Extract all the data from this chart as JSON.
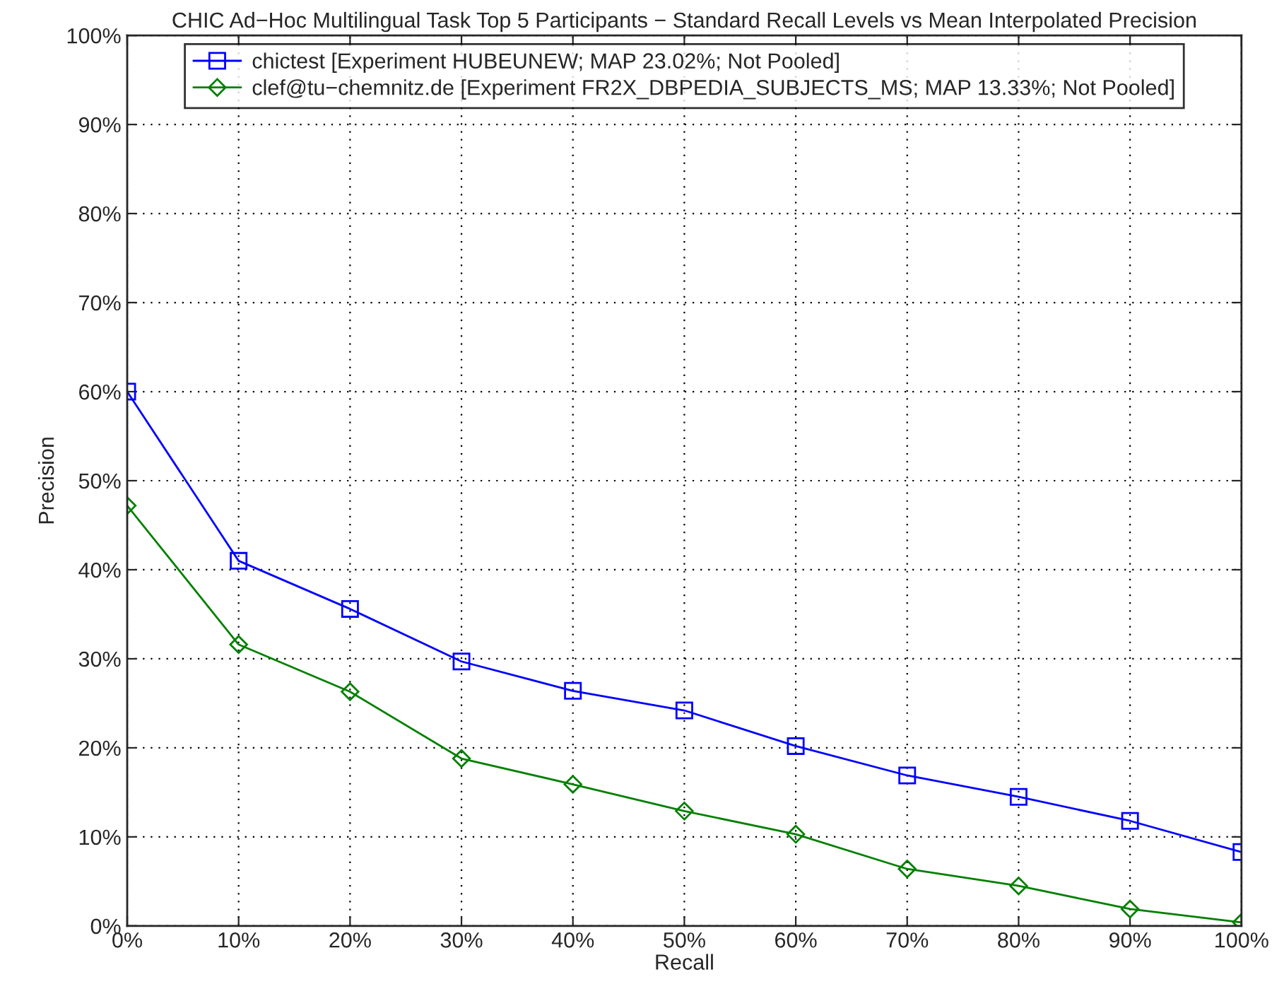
{
  "chart_data": {
    "type": "line",
    "title": "CHIC Ad−Hoc Multilingual Task Top 5 Participants − Standard Recall Levels vs Mean Interpolated Precision",
    "xlabel": "Recall",
    "ylabel": "Precision",
    "x": [
      0,
      10,
      20,
      30,
      40,
      50,
      60,
      70,
      80,
      90,
      100
    ],
    "series": [
      {
        "name": "chictest [Experiment HUBEUNEW; MAP 23.02%; Not Pooled]",
        "color": "#0000ff",
        "marker": "square",
        "values": [
          60,
          41.0,
          35.6,
          29.7,
          26.4,
          24.2,
          20.2,
          16.9,
          14.5,
          11.8,
          8.3
        ]
      },
      {
        "name": "clef@tu−chemnitz.de [Experiment FR2X_DBPEDIA_SUBJECTS_MS; MAP 13.33%; Not Pooled]",
        "color": "#008000",
        "marker": "diamond",
        "values": [
          47.2,
          31.6,
          26.3,
          18.8,
          15.9,
          12.9,
          10.3,
          6.4,
          4.5,
          1.9,
          0.4
        ]
      }
    ],
    "xlim": [
      0,
      100
    ],
    "ylim": [
      0,
      100
    ],
    "xticks": [
      {
        "value": 0,
        "label": "0%"
      },
      {
        "value": 10,
        "label": "10%"
      },
      {
        "value": 20,
        "label": "20%"
      },
      {
        "value": 30,
        "label": "30%"
      },
      {
        "value": 40,
        "label": "40%"
      },
      {
        "value": 50,
        "label": "50%"
      },
      {
        "value": 60,
        "label": "60%"
      },
      {
        "value": 70,
        "label": "70%"
      },
      {
        "value": 80,
        "label": "80%"
      },
      {
        "value": 90,
        "label": "90%"
      },
      {
        "value": 100,
        "label": "100%"
      }
    ],
    "yticks": [
      {
        "value": 0,
        "label": "0%"
      },
      {
        "value": 10,
        "label": "10%"
      },
      {
        "value": 20,
        "label": "20%"
      },
      {
        "value": 30,
        "label": "30%"
      },
      {
        "value": 40,
        "label": "40%"
      },
      {
        "value": 50,
        "label": "50%"
      },
      {
        "value": 60,
        "label": "60%"
      },
      {
        "value": 70,
        "label": "70%"
      },
      {
        "value": 80,
        "label": "80%"
      },
      {
        "value": 90,
        "label": "90%"
      },
      {
        "value": 100,
        "label": "100%"
      }
    ],
    "grid": true,
    "legend": "top",
    "line_style": "solid"
  }
}
